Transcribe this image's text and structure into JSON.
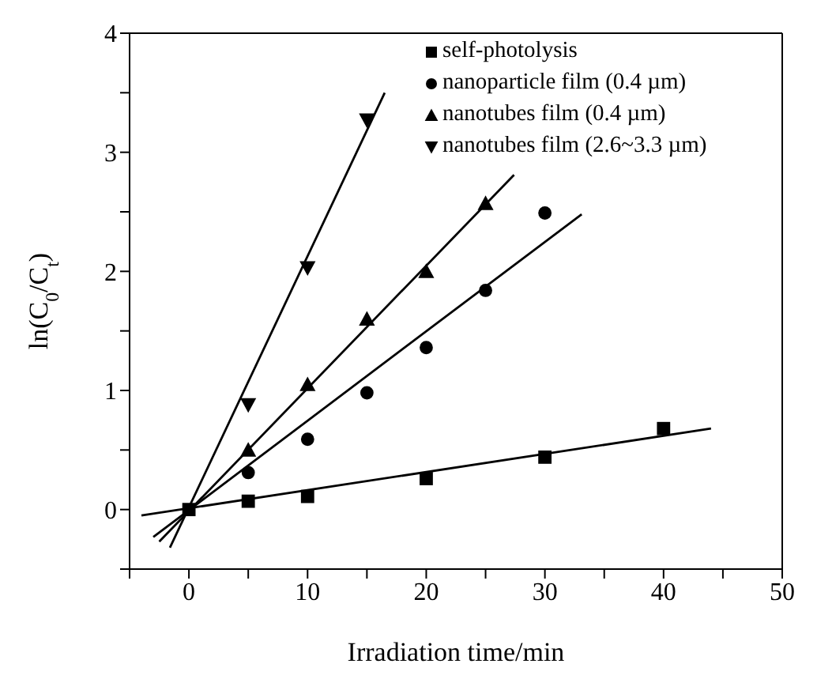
{
  "chart_data": {
    "type": "scatter",
    "xlabel": "Irradiation time/min",
    "ylabel": "ln(C$_{0}$/C$_{t}$)",
    "xlim": [
      -5,
      50
    ],
    "xticks": [
      {
        "value": -5,
        "label": null
      },
      0,
      {
        "value": 5,
        "label": null
      },
      10,
      {
        "value": 15,
        "label": null
      },
      20,
      {
        "value": 25,
        "label": null
      },
      30,
      {
        "value": 35,
        "label": null
      },
      40,
      {
        "value": 45,
        "label": null
      },
      50
    ],
    "ylim": [
      -0.5,
      4
    ],
    "yticks": [
      {
        "value": -0.5,
        "label": null
      },
      0,
      {
        "value": 0.5,
        "label": null
      },
      1,
      {
        "value": 1.5,
        "label": null
      },
      2,
      {
        "value": 2.5,
        "label": null
      },
      3,
      {
        "value": 3.5,
        "label": null
      },
      4
    ],
    "legend": "top right",
    "grid": false,
    "series": [
      {
        "name": "self-photolysis",
        "marker": "square",
        "color": "#000000",
        "x": [
          0,
          5,
          10,
          20,
          30,
          40
        ],
        "values": [
          0,
          0.07,
          0.11,
          0.26,
          0.44,
          0.68
        ]
      },
      {
        "name": "nanoparticle film (0.4 µm)",
        "marker": "circle",
        "color": "#000000",
        "x": [
          5,
          10,
          15,
          20,
          25,
          30
        ],
        "values": [
          0.31,
          0.59,
          0.98,
          1.36,
          1.84,
          2.49
        ]
      },
      {
        "name": "nanotubes film (0.4 µm)",
        "marker": "triangle",
        "color": "#000000",
        "x": [
          5,
          10,
          15,
          20,
          25
        ],
        "values": [
          0.5,
          1.05,
          1.6,
          2.0,
          2.57
        ]
      },
      {
        "name": "nanotubes film (2.6~3.3 µm)",
        "marker": "triangle-down",
        "color": "#000000",
        "x": [
          5,
          10,
          15
        ],
        "values": [
          0.88,
          2.03,
          3.27
        ]
      },
      {
        "type": "line",
        "color": "#000000",
        "line_style": "solid",
        "x": [
          -4,
          44
        ],
        "values": [
          -0.05,
          0.68
        ]
      },
      {
        "type": "line",
        "color": "#000000",
        "line_style": "solid",
        "x": [
          -3,
          33.1
        ],
        "values": [
          -0.23,
          2.48
        ]
      },
      {
        "type": "line",
        "color": "#000000",
        "line_style": "solid",
        "x": [
          -2.5,
          27.4
        ],
        "values": [
          -0.27,
          2.81
        ]
      },
      {
        "type": "line",
        "color": "#000000",
        "line_style": "solid",
        "x": [
          -1.6,
          16.5
        ],
        "values": [
          -0.32,
          3.5
        ]
      }
    ]
  }
}
